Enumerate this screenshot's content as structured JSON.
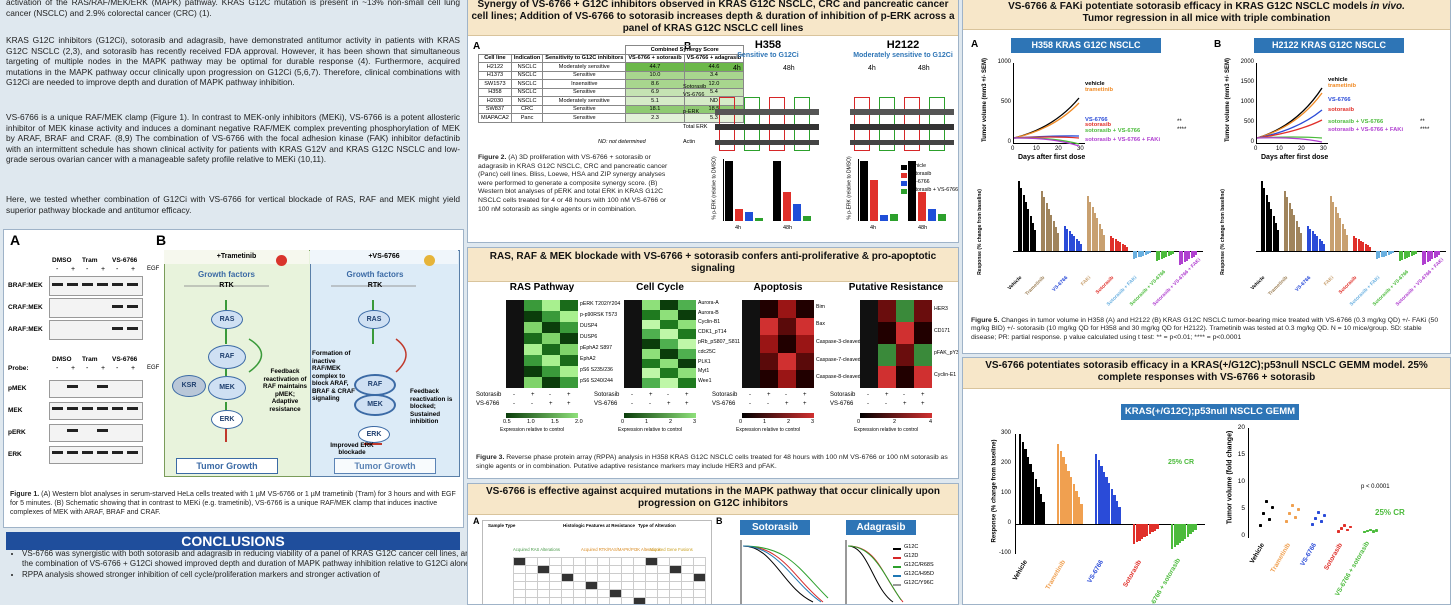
{
  "intro": {
    "p1": "activation of the RAS/RAF/MEK/ERK (MAPK) pathway. KRAS G12C mutation is present in ~13% non-small cell lung cancer (NSCLC) and 2.9% colorectal cancer (CRC) (1).",
    "p2": "KRAS G12C inhibitors (G12Ci), sotorasib and adagrasib, have demonstrated antitumor activity in patients with KRAS G12C NSCLC (2,3), and sotorasib has recently received FDA approval. However, it has been shown that simultaneous targeting of multiple nodes in the MAPK pathway may be optimal for durable response (4). Furthermore, acquired mutations in the MAPK pathway occur clinically upon progression on G12Ci (5,6,7). Therefore, clinical combinations with G12Ci are needed to improve depth and duration of MAPK pathway inhibition.",
    "p3": "VS-6766 is a unique RAF/MEK clamp (Figure 1). In contrast to MEK-only inhibitors (MEKi), VS-6766 is a potent allosteric inhibitor of MEK kinase activity and induces a dominant negative RAF/MEK complex preventing phosphorylation of MEK by ARAF, BRAF and CRAF. (8,9) The combination of VS-6766 with the focal adhesion kinase (FAK) inhibitor defactinib with an intermittent schedule has shown clinical activity for patients with KRAS G12V and KRAS G12C NSCLC and low-grade serous ovarian cancer with a manageable safety profile relative to MEKi (10,11).",
    "p4": "Here, we tested whether combination of G12Ci with VS-6766 for vertical blockade of RAS, RAF and MEK might yield superior pathway blockade and antitumor efficacy."
  },
  "figure1": {
    "panel_a": "A",
    "panel_b": "B",
    "groups": [
      "DMSO",
      "Tram",
      "VS-6766"
    ],
    "minus": "-",
    "plus": "+",
    "egf": "EGF",
    "probe": "Probe:",
    "top_rows": [
      "BRAF:MEK",
      "CRAF:MEK",
      "ARAF:MEK"
    ],
    "bottom_rows": [
      "pMEK",
      "MEK",
      "pERK",
      "ERK"
    ],
    "left_title": "+Trametinib",
    "right_title": "+VS-6766",
    "growth_factors": "Growth factors",
    "rtk": "RTK",
    "ras": "RAS",
    "raf": "RAF",
    "mek": "MEK",
    "ksr": "KSR",
    "erk": "ERK",
    "tumor_growth": "Tumor Growth",
    "left_note": "Feedback reactivation of RAF maintains pMEK; Adaptive resistance",
    "right_note_1": "Formation of inactive RAF/MEK complex to block ARAF, BRAF & CRAF signaling",
    "right_note_2": "Feedback reactivation is blocked; Sustained inhibition",
    "right_note_3": "Improved ERK blockade",
    "caption_label": "Figure 1.",
    "caption": "(A) Western blot analyses in serum-starved HeLa cells treated with 1 µM VS-6766 or 1 µM trametinib (Tram) for 3 hours and with EGF for 5 minutes. (B) Schematic showing that in contrast to MEKi (e.g. trametinib), VS-6766 is a unique RAF/MEK clamp that induces inactive complexes of MEK with ARAF, BRAF and CRAF."
  },
  "conclusions": {
    "title": "CONCLUSIONS",
    "bullets": [
      "VS-6766 was synergistic with both sotorasib and adagrasib in reducing viability of a panel of KRAS G12C cancer cell lines, and the combination of VS-6766 + G12Ci showed improved depth and duration of MAPK pathway inhibition relative to G12Ci alone.",
      "RPPA analysis showed stronger inhibition of cell cycle/proliferation markers and stronger activation of"
    ]
  },
  "figure2": {
    "header": "Synergy of VS-6766 + G12C inhibitors observed in KRAS G12C NSCLC, CRC and pancreatic cancer cell lines; Addition of VS-6766 to sotorasib increases depth & duration of inhibition of p-ERK across a panel of KRAS G12C NSCLC cell lines",
    "panel_a": "A",
    "panel_b": "B",
    "table": {
      "group_header": "Combined Synergy Score",
      "columns": [
        "Cell line",
        "Indication",
        "Sensitivity to G12C inhibitors",
        "VS-6766 + sotorasib",
        "VS-6766 + adagrasib"
      ],
      "rows": [
        [
          "H2122",
          "NSCLC",
          "Moderately sensitive",
          "44.7",
          "44.6"
        ],
        [
          "H1373",
          "NSCLC",
          "Sensitive",
          "10.0",
          "3.4"
        ],
        [
          "SW1573",
          "NSCLC",
          "Insensitive",
          "8.6",
          "12.0"
        ],
        [
          "H358",
          "NSCLC",
          "Sensitive",
          "6.9",
          "5.4"
        ],
        [
          "H2030",
          "NSCLC",
          "Moderately sensitive",
          "5.1",
          "ND"
        ],
        [
          "SW837",
          "CRC",
          "Sensitive",
          "18.1",
          "18.5"
        ],
        [
          "MIAPACA2",
          "Panc",
          "Sensitive",
          "2.3",
          "5.3"
        ]
      ],
      "note": "ND: not determined"
    },
    "blots": [
      {
        "title": "H358",
        "subtitle": "Sensitive to G12Ci"
      },
      {
        "title": "H2122",
        "subtitle": "Moderately sensitive to G12Ci"
      }
    ],
    "times": [
      "4h",
      "48h"
    ],
    "blot_rows": [
      "Sotorasib",
      "VS-6766",
      "p-ERK",
      "Total ERK",
      "Actin"
    ],
    "bar_ylabel": "% p-ERK (relative to DMSO)",
    "legend": [
      "Vehicle",
      "Sotorasib",
      "VS-6766",
      "Sotorasib + VS-6766"
    ],
    "caption_label": "Figure 2.",
    "caption": "(A) 3D proliferation with VS-6766 + sotorasib or adagrasib in KRAS G12C NSCLC, CRC and pancreatic cancer (Panc) cell lines. Bliss, Loewe, HSA and ZIP synergy analyses were performed to generate a composite synergy score. (B) Western blot analyses of pERK and total ERK in KRAS G12C NSCLC cells treated for 4 or 48 hours with 100 nM VS-6766 or 100 nM sotorasib as single agents or in combination."
  },
  "figure3": {
    "header": "RAS, RAF & MEK blockade with VS-6766 + sotorasib confers anti-proliferative & pro-apoptotic signaling",
    "panels": [
      {
        "title": "RAS Pathway",
        "genes": [
          "pERK T202/Y204",
          "p-p90RSK T573",
          "DUSP4",
          "DUSP6",
          "pEphA2 S897",
          "EphA2",
          "pS6 S235/236",
          "pS6 S240/244"
        ],
        "scale": [
          "0.5",
          "1.0",
          "1.5",
          "2.0"
        ]
      },
      {
        "title": "Cell Cycle",
        "genes": [
          "Aurora-A",
          "Aurora-B",
          "Cyclin-B1",
          "CDK1_pT14",
          "pRb_pS807_S811",
          "cdc25C",
          "PLK1",
          "Myt1",
          "Wee1"
        ],
        "scale": [
          "0",
          "1",
          "2",
          "3"
        ]
      },
      {
        "title": "Apoptosis",
        "genes": [
          "Bim",
          "Bax",
          "Caspase-3-cleaved",
          "Caspase-7-cleaved",
          "Caspase-8-cleaved"
        ],
        "scale": [
          "0",
          "1",
          "2",
          "3"
        ]
      },
      {
        "title": "Putative Resistance",
        "genes": [
          "HER3",
          "CD171",
          "pFAK_pY397",
          "Cyclin-E1"
        ],
        "scale": [
          "0",
          "2",
          "4"
        ]
      }
    ],
    "row_labels": [
      "Sotorasib",
      "VS-6766"
    ],
    "signs": [
      [
        "-",
        "+",
        "-",
        "+"
      ],
      [
        "-",
        "-",
        "+",
        "+"
      ]
    ],
    "scale_label": "Expression relative to control",
    "caption_label": "Figure 3.",
    "caption": "Reverse phase protein array (RPPA) analysis in H358 KRAS G12C NSCLC cells treated for 48 hours with 100 nM VS-6766 or 100 nM sotorasib as single agents or in combination. Putative adaptive resistance markers may include HER3 and pFAK."
  },
  "figure4": {
    "header": "VS-6766 is effective against acquired mutations in the MAPK pathway that occur clinically upon progression on G12C inhibitors",
    "panel_a": "A",
    "panel_b": "B",
    "legend_titles": [
      "Sample Type",
      "Histologic Features at Resistance",
      "Type of Alteration"
    ],
    "groups": [
      "Acquired RAS Alterations",
      "Acquired RTK/RAS/MAPK/PI3K Alterations",
      "Acquired Gene Fusions"
    ],
    "drugs": [
      "Sotorasib",
      "Adagrasib"
    ],
    "lines": [
      "G12C",
      "G12D",
      "G12C/R68S",
      "G12C/H95D",
      "G12C/Y96C"
    ]
  },
  "figure5": {
    "header_1": "VS-6766 & FAKi potentiate sotorasib efficacy in KRAS G12C NSCLC models",
    "header_em": "in vivo.",
    "header_2": "Tumor regression in all mice with triple combination",
    "panels": [
      {
        "label": "A",
        "title": "H358 KRAS G12C NSCLC",
        "yticks": [
          "0",
          "500",
          "1000"
        ]
      },
      {
        "label": "B",
        "title": "H2122 KRAS G12C NSCLC",
        "yticks": [
          "0",
          "500",
          "1000",
          "1500",
          "2000"
        ]
      }
    ],
    "xticks": [
      "0",
      "10",
      "20",
      "30"
    ],
    "ylabel": "Tumor volume (mm3 +/- SEM)",
    "xlabel": "Days after first dose",
    "series": [
      "vehicle",
      "trametinib",
      "VS-6766",
      "sotorasib",
      "sotorasib + VS-6766",
      "sotorasib + VS-6766 + FAKi"
    ],
    "stars": [
      "**",
      "****"
    ],
    "waterfall_ylabel": "Response (% change from baseline)",
    "groups": [
      "Vehicle",
      "Trametinib",
      "VS-6766",
      "FAKi",
      "Sotorasib",
      "Sotorasib + FAKi",
      "Sotorasib + VS-6766",
      "Sotorasib + VS-6766 + FAKi"
    ],
    "caption_label": "Figure 5.",
    "caption": "Changes in tumor volume in H358 (A) and H2122 (B) KRAS G12C NSCLC tumor-bearing mice treated with VS-6766 (0.3 mg/kg QD) +/- FAKi (50 mg/kg BID) +/- sotorasib (10 mg/kg QD for H358 and 30 mg/kg QD for H2122). Trametinib was tested at 0.3 mg/kg QD. N = 10 mice/group. SD: stable disease; PR: partial response. p value calculated using t test: ** = p<0.01; **** = p<0.0001"
  },
  "figure6": {
    "header": "VS-6766 potentiates sotorasib efficacy in a KRAS(+/G12C);p53null NSCLC GEMM model. 25% complete responses with VS-6766 + sotorasib",
    "title": "KRAS(+/G12C);p53null NSCLC GEMM",
    "left_yticks": [
      "300",
      "200",
      "100",
      "0",
      "-100"
    ],
    "left_ylabel": "Response (% change from baseline)",
    "right_yticks": [
      "20",
      "15",
      "10",
      "5",
      "0"
    ],
    "right_ylabel": "Tumor volume (fold change)",
    "cr": "25% CR",
    "p": "p < 0.0001",
    "groups": [
      "Vehicle",
      "Trametinib",
      "VS-6766",
      "Sotorasib",
      "VS-6766 + sotorasib"
    ]
  }
}
